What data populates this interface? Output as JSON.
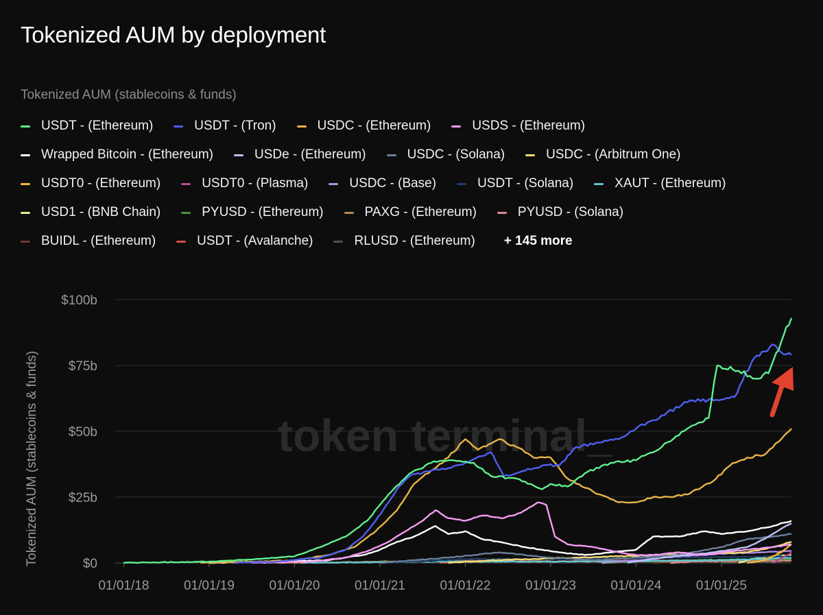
{
  "title": "Tokenized AUM by deployment",
  "legend_heading": "Tokenized AUM (stablecoins & funds)",
  "legend_more": "+ 145 more",
  "watermark": "token terminal_",
  "legend": [
    {
      "name": "USDT - (Ethereum)",
      "color": "#5ef08f"
    },
    {
      "name": "USDT - (Tron)",
      "color": "#4f5ff0"
    },
    {
      "name": "USDC - (Ethereum)",
      "color": "#e8b445"
    },
    {
      "name": "USDS - (Ethereum)",
      "color": "#f59bf2"
    },
    {
      "name": "Wrapped Bitcoin - (Ethereum)",
      "color": "#ffffff"
    },
    {
      "name": "USDe - (Ethereum)",
      "color": "#b9c2f7"
    },
    {
      "name": "USDC - (Solana)",
      "color": "#6b7f99"
    },
    {
      "name": "USDC - (Arbitrum One)",
      "color": "#f3dc72"
    },
    {
      "name": "USDT0 - (Ethereum)",
      "color": "#f5b742"
    },
    {
      "name": "USDT0 - (Plasma)",
      "color": "#b04f8f"
    },
    {
      "name": "USDC - (Base)",
      "color": "#b48be8"
    },
    {
      "name": "USDT - (Solana)",
      "color": "#1e3d66"
    },
    {
      "name": "XAUT - (Ethereum)",
      "color": "#63c5d1"
    },
    {
      "name": "USD1 - (BNB Chain)",
      "color": "#e2ef93"
    },
    {
      "name": "PYUSD - (Ethereum)",
      "color": "#4f8f3a"
    },
    {
      "name": "PAXG - (Ethereum)",
      "color": "#b58954"
    },
    {
      "name": "PYUSD - (Solana)",
      "color": "#d98a94"
    },
    {
      "name": "BUIDL - (Ethereum)",
      "color": "#6a3a36"
    },
    {
      "name": "USDT - (Avalanche)",
      "color": "#d4504a"
    },
    {
      "name": "RLUSD - (Ethereum)",
      "color": "#4d5345"
    }
  ],
  "chart_data": {
    "type": "line",
    "ylabel": "Tokenized AUM (stablecoins & funds)",
    "y_tick_labels": [
      "$0",
      "$25b",
      "$50b",
      "$75b",
      "$100b"
    ],
    "y_ticks": [
      0,
      25,
      50,
      75,
      100
    ],
    "ylim": [
      0,
      100
    ],
    "x_tick_labels": [
      "01/01/18",
      "01/01/19",
      "01/01/20",
      "01/01/21",
      "01/01/22",
      "01/01/23",
      "01/01/24",
      "01/01/25"
    ],
    "x_ticks": [
      2018,
      2019,
      2020,
      2021,
      2022,
      2023,
      2024,
      2025
    ],
    "xlim": [
      2017.9,
      2025.82
    ],
    "grid": "horizontal",
    "series": [
      {
        "name": "USDT - (Ethereum)",
        "color": "#5ef08f",
        "points": [
          [
            2018,
            0
          ],
          [
            2019,
            0.5
          ],
          [
            2019.6,
            1.5
          ],
          [
            2020,
            2.5
          ],
          [
            2020.3,
            6
          ],
          [
            2020.6,
            10
          ],
          [
            2020.85,
            16
          ],
          [
            2021.1,
            26
          ],
          [
            2021.35,
            34
          ],
          [
            2021.6,
            38
          ],
          [
            2021.8,
            39
          ],
          [
            2022.1,
            38
          ],
          [
            2022.3,
            33
          ],
          [
            2022.6,
            32
          ],
          [
            2022.9,
            28
          ],
          [
            2023.0,
            30
          ],
          [
            2023.2,
            29
          ],
          [
            2023.4,
            34
          ],
          [
            2023.7,
            38
          ],
          [
            2024.0,
            39
          ],
          [
            2024.3,
            44
          ],
          [
            2024.6,
            51
          ],
          [
            2024.85,
            55
          ],
          [
            2024.95,
            75
          ],
          [
            2025.2,
            73
          ],
          [
            2025.4,
            70
          ],
          [
            2025.55,
            72
          ],
          [
            2025.7,
            84
          ],
          [
            2025.82,
            93
          ]
        ]
      },
      {
        "name": "USDT - (Tron)",
        "color": "#4f5ff0",
        "points": [
          [
            2019.3,
            0
          ],
          [
            2019.8,
            0.5
          ],
          [
            2020.3,
            2
          ],
          [
            2020.6,
            5
          ],
          [
            2020.8,
            10
          ],
          [
            2020.95,
            16
          ],
          [
            2021.1,
            23
          ],
          [
            2021.2,
            28
          ],
          [
            2021.35,
            33
          ],
          [
            2021.6,
            35
          ],
          [
            2021.8,
            36
          ],
          [
            2022.0,
            38
          ],
          [
            2022.3,
            42
          ],
          [
            2022.45,
            33
          ],
          [
            2022.7,
            35
          ],
          [
            2022.9,
            37
          ],
          [
            2023.1,
            37
          ],
          [
            2023.3,
            44
          ],
          [
            2023.5,
            45
          ],
          [
            2023.8,
            47
          ],
          [
            2024.0,
            51
          ],
          [
            2024.3,
            56
          ],
          [
            2024.6,
            61
          ],
          [
            2024.85,
            62
          ],
          [
            2025.0,
            62
          ],
          [
            2025.15,
            63
          ],
          [
            2025.35,
            76
          ],
          [
            2025.6,
            83
          ],
          [
            2025.7,
            80
          ],
          [
            2025.82,
            79
          ]
        ]
      },
      {
        "name": "USDC - (Ethereum)",
        "color": "#e8b445",
        "points": [
          [
            2018.9,
            0
          ],
          [
            2019.5,
            0.5
          ],
          [
            2020.0,
            1
          ],
          [
            2020.4,
            3
          ],
          [
            2020.7,
            6
          ],
          [
            2020.95,
            12
          ],
          [
            2021.2,
            20
          ],
          [
            2021.4,
            30
          ],
          [
            2021.6,
            35
          ],
          [
            2021.8,
            40
          ],
          [
            2022.0,
            47
          ],
          [
            2022.15,
            43
          ],
          [
            2022.4,
            47
          ],
          [
            2022.6,
            44
          ],
          [
            2022.8,
            40
          ],
          [
            2023.0,
            40
          ],
          [
            2023.2,
            32
          ],
          [
            2023.5,
            27
          ],
          [
            2023.8,
            23
          ],
          [
            2024.0,
            23
          ],
          [
            2024.2,
            25
          ],
          [
            2024.4,
            25
          ],
          [
            2024.6,
            26
          ],
          [
            2024.9,
            31
          ],
          [
            2025.1,
            37
          ],
          [
            2025.3,
            40
          ],
          [
            2025.5,
            41
          ],
          [
            2025.7,
            47
          ],
          [
            2025.82,
            51
          ]
        ]
      },
      {
        "name": "USDS - (Ethereum)",
        "color": "#f59bf2",
        "points": [
          [
            2019.5,
            0
          ],
          [
            2020.2,
            0.5
          ],
          [
            2020.6,
            2
          ],
          [
            2020.9,
            5
          ],
          [
            2021.1,
            8
          ],
          [
            2021.3,
            12
          ],
          [
            2021.5,
            16
          ],
          [
            2021.65,
            20
          ],
          [
            2021.8,
            17
          ],
          [
            2022.0,
            16
          ],
          [
            2022.2,
            18
          ],
          [
            2022.45,
            17
          ],
          [
            2022.65,
            19
          ],
          [
            2022.85,
            23
          ],
          [
            2022.95,
            22
          ],
          [
            2023.05,
            10
          ],
          [
            2023.2,
            7
          ],
          [
            2023.5,
            6
          ],
          [
            2023.8,
            4
          ],
          [
            2024.0,
            3
          ],
          [
            2024.2,
            3
          ],
          [
            2024.5,
            4
          ],
          [
            2024.8,
            3
          ],
          [
            2025.0,
            4
          ],
          [
            2025.3,
            5
          ],
          [
            2025.6,
            6
          ],
          [
            2025.82,
            7
          ]
        ]
      },
      {
        "name": "Wrapped Bitcoin - (Ethereum)",
        "color": "#ffffff",
        "points": [
          [
            2019.0,
            0
          ],
          [
            2019.8,
            0.5
          ],
          [
            2020.4,
            1
          ],
          [
            2020.8,
            3
          ],
          [
            2021.0,
            5
          ],
          [
            2021.2,
            8
          ],
          [
            2021.4,
            10
          ],
          [
            2021.65,
            14
          ],
          [
            2021.8,
            11
          ],
          [
            2022.0,
            12
          ],
          [
            2022.2,
            9
          ],
          [
            2022.4,
            8
          ],
          [
            2022.7,
            6
          ],
          [
            2022.9,
            5
          ],
          [
            2023.1,
            4
          ],
          [
            2023.4,
            3
          ],
          [
            2023.7,
            4
          ],
          [
            2024.0,
            5
          ],
          [
            2024.2,
            10
          ],
          [
            2024.5,
            10
          ],
          [
            2024.8,
            12
          ],
          [
            2025.0,
            11
          ],
          [
            2025.3,
            12
          ],
          [
            2025.6,
            14
          ],
          [
            2025.82,
            16
          ]
        ]
      },
      {
        "name": "USDe - (Ethereum)",
        "color": "#b9c2f7",
        "points": [
          [
            2023.9,
            0
          ],
          [
            2024.1,
            1
          ],
          [
            2024.3,
            2
          ],
          [
            2024.6,
            3
          ],
          [
            2024.9,
            4
          ],
          [
            2025.1,
            5
          ],
          [
            2025.3,
            6
          ],
          [
            2025.5,
            9
          ],
          [
            2025.7,
            13
          ],
          [
            2025.82,
            15
          ]
        ]
      },
      {
        "name": "USDC - (Solana)",
        "color": "#6b7f99",
        "points": [
          [
            2021.0,
            0
          ],
          [
            2021.4,
            1
          ],
          [
            2021.8,
            2
          ],
          [
            2022.1,
            3
          ],
          [
            2022.4,
            4
          ],
          [
            2022.7,
            3
          ],
          [
            2023.0,
            2
          ],
          [
            2023.5,
            1
          ],
          [
            2024.0,
            2
          ],
          [
            2024.5,
            3
          ],
          [
            2025.0,
            6
          ],
          [
            2025.3,
            9
          ],
          [
            2025.6,
            10
          ],
          [
            2025.82,
            11
          ]
        ]
      },
      {
        "name": "USDC - (Arbitrum One)",
        "color": "#f3dc72",
        "points": [
          [
            2021.8,
            0
          ],
          [
            2022.3,
            1
          ],
          [
            2022.8,
            1.5
          ],
          [
            2023.3,
            2
          ],
          [
            2023.8,
            2.5
          ],
          [
            2024.3,
            3
          ],
          [
            2024.8,
            3.5
          ],
          [
            2025.3,
            4
          ],
          [
            2025.6,
            6
          ],
          [
            2025.82,
            8
          ]
        ]
      },
      {
        "name": "USDT0 - (Ethereum)",
        "color": "#f5b742",
        "points": [
          [
            2025.3,
            0
          ],
          [
            2025.5,
            1
          ],
          [
            2025.7,
            4
          ],
          [
            2025.82,
            7
          ]
        ]
      },
      {
        "name": "USDT0 - (Plasma)",
        "color": "#b04f8f",
        "points": [
          [
            2025.6,
            0
          ],
          [
            2025.72,
            2
          ],
          [
            2025.82,
            4
          ]
        ]
      },
      {
        "name": "USDC - (Base)",
        "color": "#b48be8",
        "points": [
          [
            2023.6,
            0
          ],
          [
            2024.0,
            1
          ],
          [
            2024.5,
            2.5
          ],
          [
            2025.0,
            3.5
          ],
          [
            2025.5,
            4
          ],
          [
            2025.82,
            4.5
          ]
        ]
      },
      {
        "name": "USDT - (Solana)",
        "color": "#1e3d66",
        "points": [
          [
            2021.0,
            0
          ],
          [
            2021.5,
            0.5
          ],
          [
            2022.0,
            1.5
          ],
          [
            2023.0,
            1.5
          ],
          [
            2024.0,
            1.8
          ],
          [
            2025.0,
            2.2
          ],
          [
            2025.82,
            2.5
          ]
        ]
      },
      {
        "name": "XAUT - (Ethereum)",
        "color": "#63c5d1",
        "points": [
          [
            2020.1,
            0
          ],
          [
            2021.0,
            0.3
          ],
          [
            2022.0,
            0.5
          ],
          [
            2023.0,
            0.5
          ],
          [
            2024.0,
            0.7
          ],
          [
            2025.0,
            1
          ],
          [
            2025.5,
            1.5
          ],
          [
            2025.82,
            2
          ]
        ]
      },
      {
        "name": "USD1 - (BNB Chain)",
        "color": "#e2ef93",
        "points": [
          [
            2025.2,
            0
          ],
          [
            2025.35,
            1.5
          ],
          [
            2025.6,
            2.5
          ],
          [
            2025.82,
            3
          ]
        ]
      },
      {
        "name": "PYUSD - (Ethereum)",
        "color": "#4f8f3a",
        "points": [
          [
            2023.6,
            0
          ],
          [
            2024.0,
            0.5
          ],
          [
            2024.5,
            1
          ],
          [
            2025.0,
            1.2
          ],
          [
            2025.82,
            1.5
          ]
        ]
      },
      {
        "name": "PAXG - (Ethereum)",
        "color": "#b58954",
        "points": [
          [
            2019.7,
            0
          ],
          [
            2020.5,
            0.2
          ],
          [
            2021.0,
            0.5
          ],
          [
            2022.0,
            0.6
          ],
          [
            2023.0,
            0.5
          ],
          [
            2024.0,
            0.6
          ],
          [
            2025.0,
            0.8
          ],
          [
            2025.82,
            1.3
          ]
        ]
      },
      {
        "name": "PYUSD - (Solana)",
        "color": "#d98a94",
        "points": [
          [
            2024.4,
            0
          ],
          [
            2024.7,
            0.5
          ],
          [
            2025.0,
            0.6
          ],
          [
            2025.5,
            0.8
          ],
          [
            2025.82,
            1
          ]
        ]
      },
      {
        "name": "BUIDL - (Ethereum)",
        "color": "#6a3a36",
        "points": [
          [
            2024.2,
            0
          ],
          [
            2024.5,
            0.5
          ],
          [
            2025.0,
            0.7
          ],
          [
            2025.5,
            1.5
          ],
          [
            2025.82,
            2
          ]
        ]
      },
      {
        "name": "USDT - (Avalanche)",
        "color": "#d4504a",
        "points": [
          [
            2021.7,
            0
          ],
          [
            2022.0,
            0.8
          ],
          [
            2023.0,
            0.6
          ],
          [
            2024.0,
            0.8
          ],
          [
            2025.0,
            1
          ],
          [
            2025.82,
            1.2
          ]
        ]
      },
      {
        "name": "RLUSD - (Ethereum)",
        "color": "#4d5345",
        "points": [
          [
            2025.0,
            0
          ],
          [
            2025.4,
            0.3
          ],
          [
            2025.82,
            0.8
          ]
        ]
      }
    ]
  }
}
